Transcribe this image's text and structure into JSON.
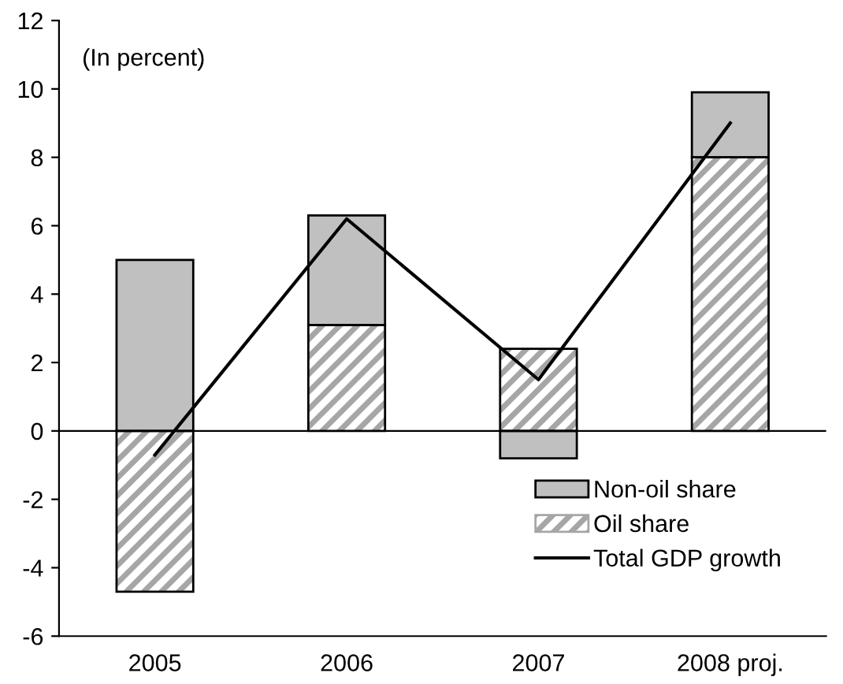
{
  "chart_data": {
    "type": "bar",
    "stacked": true,
    "categories": [
      "2005",
      "2006",
      "2007",
      "2008 proj."
    ],
    "series": [
      {
        "name": "Non-oil share",
        "color": "#c0c0c0",
        "values": [
          5.0,
          3.2,
          -0.8,
          1.9
        ]
      },
      {
        "name": "Oil share",
        "color": "#a6a6a6",
        "values": [
          -4.7,
          3.1,
          2.4,
          8.0
        ]
      },
      {
        "name": "Total GDP growth",
        "type": "line",
        "color": "#000000",
        "values": [
          -0.7,
          6.2,
          1.5,
          9.0
        ]
      }
    ],
    "ylim": [
      -6,
      12
    ],
    "yticks": [
      -6,
      -4,
      -2,
      0,
      2,
      4,
      6,
      8,
      10,
      12
    ],
    "legend": "bottom right",
    "annotations": [
      "(In percent)"
    ]
  }
}
